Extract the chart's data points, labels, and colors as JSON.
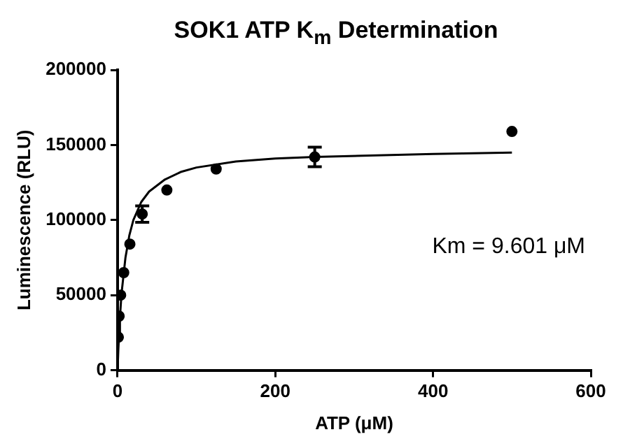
{
  "chart_data": {
    "type": "scatter",
    "title": "SOK1 ATP K$_{m}$ Determination",
    "xlabel": "ATP (μM)",
    "ylabel": "Luminescence (RLU)",
    "xlim": [
      0,
      600
    ],
    "xticks": [
      0,
      200,
      400,
      600
    ],
    "ylim": [
      0,
      200000
    ],
    "yticks": [
      0,
      50000,
      100000,
      150000,
      200000
    ],
    "grid": false,
    "annotations": [
      "Km = 9.601 μM"
    ],
    "series": [
      {
        "color": "#000000",
        "marker": "circle",
        "x": [
          0.98,
          1.95,
          3.9,
          7.8,
          15.6,
          31.25,
          62.5,
          125,
          250,
          500
        ],
        "values": [
          22000,
          36000,
          50000,
          65000,
          84000,
          104000,
          120000,
          134000,
          142000,
          159000
        ],
        "errors": [
          null,
          null,
          null,
          null,
          null,
          5500,
          null,
          null,
          6500,
          null
        ]
      },
      {
        "type": "line",
        "color": "#000000",
        "marker": "none",
        "x": [
          0,
          1,
          2,
          3,
          5,
          10,
          15,
          20,
          30,
          40,
          60,
          80,
          100,
          150,
          200,
          250,
          400,
          500
        ],
        "values": [
          0,
          14000,
          25000,
          35000,
          51000,
          75000,
          90000,
          100000,
          112000,
          119000,
          127000,
          132000,
          135000,
          139000,
          141000,
          142000,
          144000,
          145000
        ]
      }
    ]
  }
}
